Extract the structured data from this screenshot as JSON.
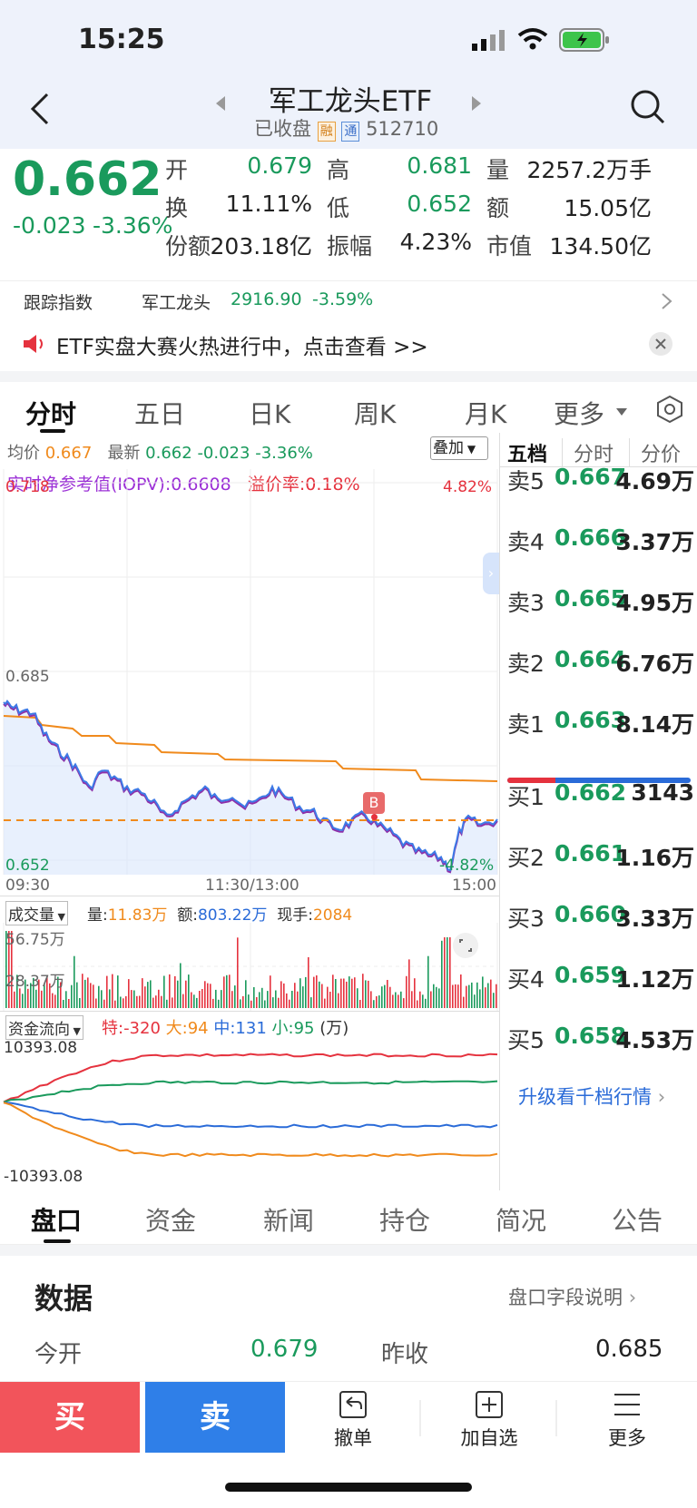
{
  "status": {
    "time": "15:25"
  },
  "header": {
    "title": "军工龙头ETF",
    "state": "已收盘",
    "badge_rong": "融",
    "badge_tong": "通",
    "code": "512710"
  },
  "quote": {
    "price": "0.662",
    "change": "-0.023",
    "change_pct": "-3.36%",
    "stats": [
      {
        "label": "开",
        "value": "0.679"
      },
      {
        "label": "高",
        "value": "0.681"
      },
      {
        "label": "量",
        "value": "2257.2万手"
      },
      {
        "label": "换",
        "value": "11.11%"
      },
      {
        "label": "低",
        "value": "0.652"
      },
      {
        "label": "额",
        "value": "15.05亿"
      },
      {
        "label": "份额",
        "value": "203.18亿"
      },
      {
        "label": "振幅",
        "value": "4.23%"
      },
      {
        "label": "市值",
        "value": "134.50亿"
      }
    ]
  },
  "tracking": {
    "label": "跟踪指数",
    "index_name": "军工龙头",
    "index_value": "2916.90",
    "index_change": "-3.59%"
  },
  "banner": {
    "text": "ETF实盘大赛火热进行中，点击查看 >>"
  },
  "tabs": [
    "分时",
    "五日",
    "日K",
    "周K",
    "月K",
    "更多"
  ],
  "chart_info": {
    "avg_label": "均价",
    "avg_value": "0.667",
    "latest_label": "最新",
    "latest_value": "0.662",
    "latest_change": "-0.023",
    "latest_pct": "-3.36%",
    "overlay_label": "叠加",
    "iopv_label": "实时净参考值(IOPV):0.6608",
    "premium_label": "溢价率:0.18%",
    "y_top": "0.718",
    "y_mid": "0.685",
    "y_bottom": "0.652",
    "pct_top": "4.82%",
    "pct_bottom": "-4.82%",
    "x_start": "09:30",
    "x_mid": "11:30/13:00",
    "x_end": "15:00",
    "marker": "B"
  },
  "volume": {
    "label": "成交量",
    "vol_label": "量:",
    "vol_value": "11.83万",
    "amt_label": "额:",
    "amt_value": "803.22万",
    "cur_label": "现手:",
    "cur_value": "2084",
    "y_top": "56.75万",
    "y_mid": "28.37万"
  },
  "flow": {
    "label": "资金流向",
    "te": "特:-320",
    "da": "大:94",
    "zhong": "中:131",
    "xiao": "小:95",
    "unit": "(万)",
    "y_top": "10393.08",
    "y_bottom": "-10393.08"
  },
  "orderbook": {
    "tabs": [
      "五档",
      "分时",
      "分价"
    ],
    "asks": [
      {
        "label": "卖5",
        "price": "0.667",
        "vol": "4.69万"
      },
      {
        "label": "卖4",
        "price": "0.666",
        "vol": "3.37万"
      },
      {
        "label": "卖3",
        "price": "0.665",
        "vol": "4.95万"
      },
      {
        "label": "卖2",
        "price": "0.664",
        "vol": "6.76万"
      },
      {
        "label": "卖1",
        "price": "0.663",
        "vol": "8.14万"
      }
    ],
    "bids": [
      {
        "label": "买1",
        "price": "0.662",
        "vol": "3143"
      },
      {
        "label": "买2",
        "price": "0.661",
        "vol": "1.16万"
      },
      {
        "label": "买3",
        "price": "0.660",
        "vol": "3.33万"
      },
      {
        "label": "买4",
        "price": "0.659",
        "vol": "1.12万"
      },
      {
        "label": "买5",
        "price": "0.658",
        "vol": "4.53万"
      }
    ],
    "upgrade": "升级看千档行情"
  },
  "bottom_tabs": [
    "盘口",
    "资金",
    "新闻",
    "持仓",
    "简况",
    "公告"
  ],
  "data_section": {
    "title": "数据",
    "explain": "盘口字段说明",
    "open_label": "今开",
    "open_value": "0.679",
    "prev_label": "昨收",
    "prev_value": "0.685"
  },
  "actions": {
    "buy": "买",
    "sell": "卖",
    "cancel": "撤单",
    "watch": "加自选",
    "more": "更多"
  },
  "colors": {
    "green": "#1a9a5c",
    "red": "#e5323e",
    "blue": "#2a6bd8",
    "orange": "#f08a1c"
  }
}
